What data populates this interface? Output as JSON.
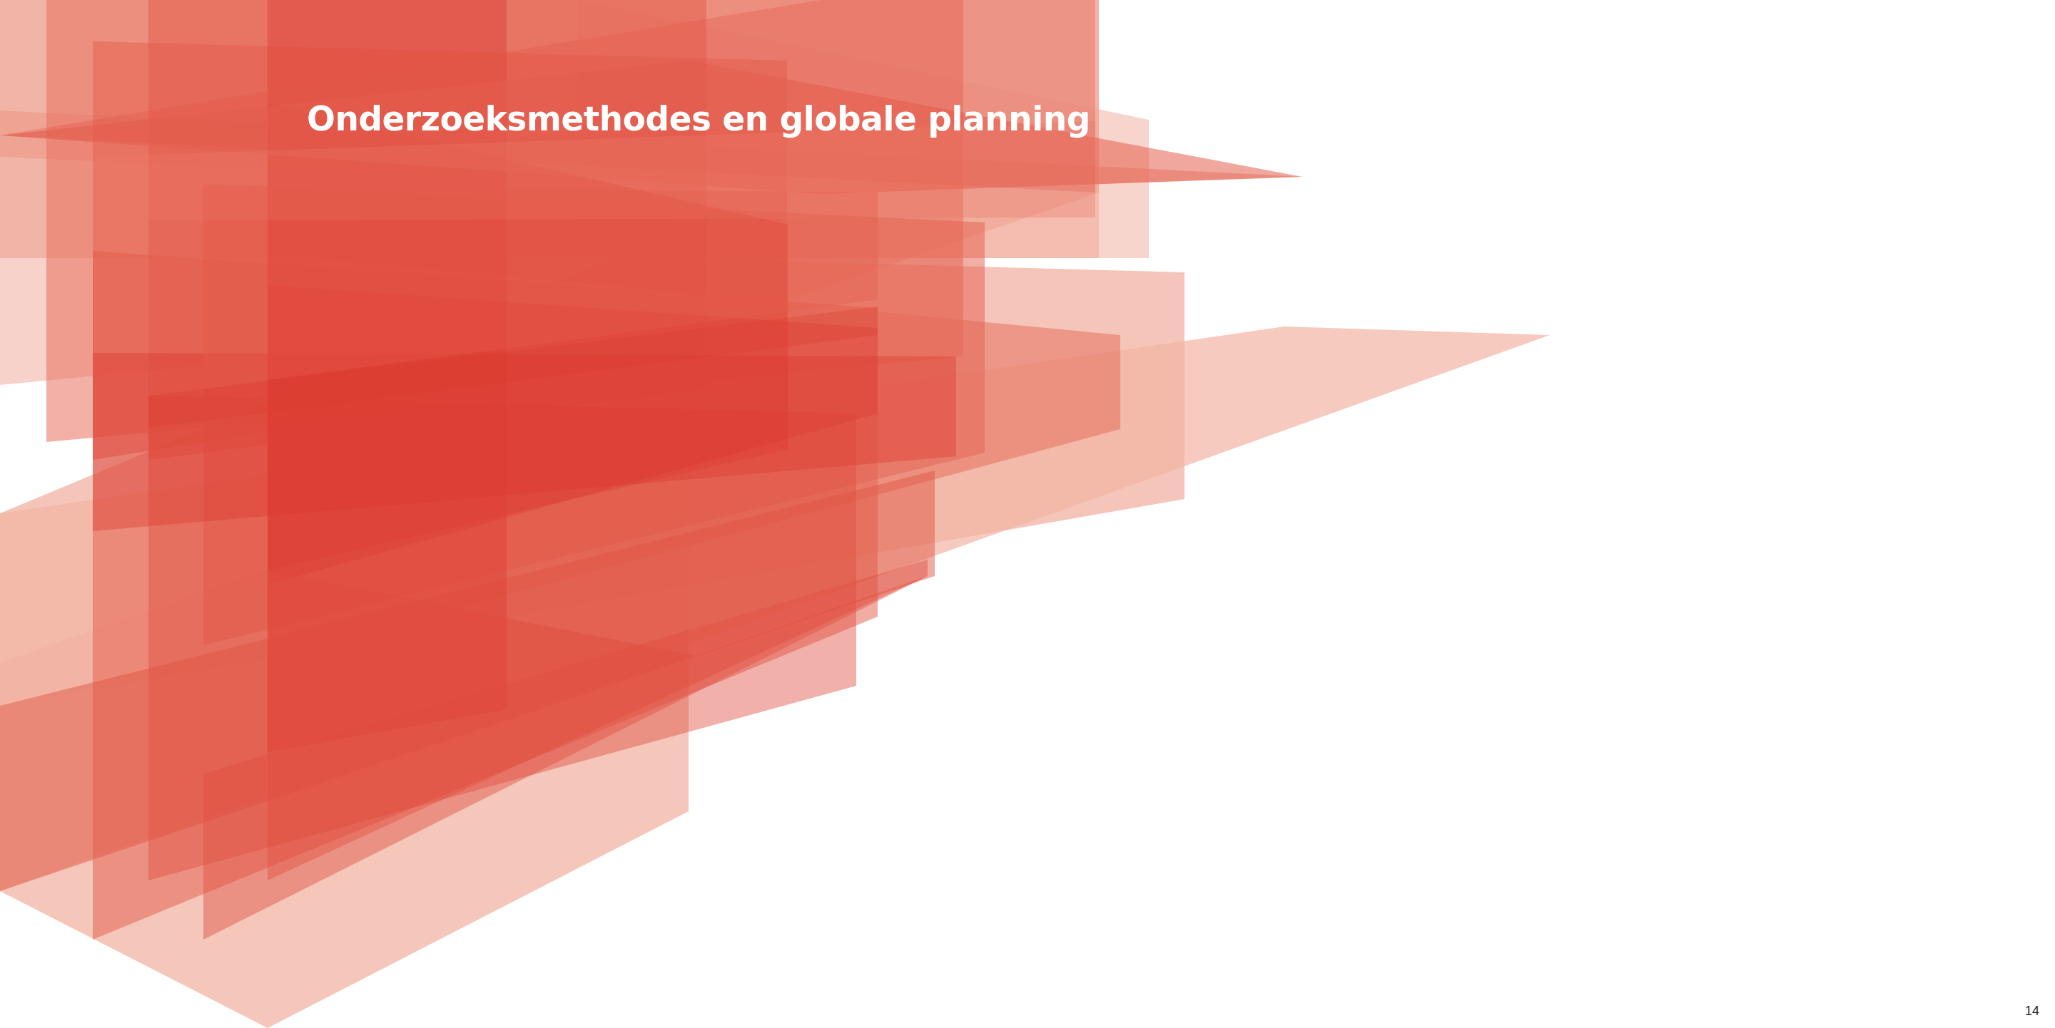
{
  "slide": {
    "title": "Onderzoeksmethodes en globale planning",
    "page_number": "14"
  },
  "decoration": {
    "description_icon": "layered-red-translucent-polygons",
    "colors": {
      "light": "#f2b3a3",
      "medium": "#e8705e",
      "dark": "#dc3a30",
      "text": "#ffffff"
    }
  }
}
